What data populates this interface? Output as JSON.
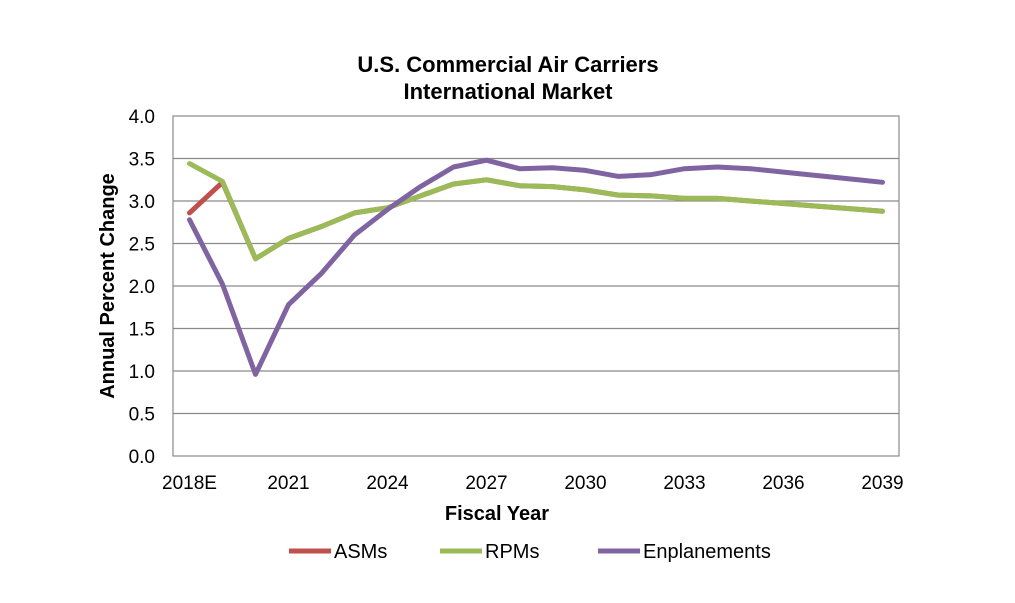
{
  "chart_data": {
    "type": "line",
    "title": [
      "U.S. Commercial Air Carriers",
      "International Market"
    ],
    "xlabel": "Fiscal Year",
    "ylabel": "Annual Percent Change",
    "ylim": [
      0,
      4
    ],
    "yticks": [
      "0.0",
      "0.5",
      "1.0",
      "1.5",
      "2.0",
      "2.5",
      "3.0",
      "3.5",
      "4.0"
    ],
    "ytick_values": [
      0,
      0.5,
      1,
      1.5,
      2,
      2.5,
      3,
      3.5,
      4
    ],
    "x": [
      2018,
      2019,
      2020,
      2021,
      2022,
      2023,
      2024,
      2025,
      2026,
      2027,
      2028,
      2029,
      2030,
      2031,
      2032,
      2033,
      2034,
      2035,
      2036,
      2037,
      2038,
      2039
    ],
    "xticks": [
      "2018E",
      "2021",
      "2024",
      "2027",
      "2030",
      "2033",
      "2036",
      "2039"
    ],
    "xtick_values": [
      2018,
      2021,
      2024,
      2027,
      2030,
      2033,
      2036,
      2039
    ],
    "grid": true,
    "legend_position": "bottom",
    "series": [
      {
        "name": "ASMs",
        "color": "#c0504d",
        "values": [
          2.86,
          3.22,
          2.32,
          2.56,
          2.7,
          2.86,
          2.92,
          3.06,
          3.2,
          3.25,
          3.18,
          3.17,
          3.13,
          3.07,
          3.06,
          3.03,
          3.03,
          3.0,
          2.97,
          2.94,
          2.91,
          2.88
        ]
      },
      {
        "name": "RPMs",
        "color": "#9bbb59",
        "values": [
          3.44,
          3.23,
          2.32,
          2.56,
          2.7,
          2.86,
          2.92,
          3.06,
          3.2,
          3.25,
          3.18,
          3.17,
          3.13,
          3.07,
          3.06,
          3.03,
          3.03,
          3.0,
          2.97,
          2.94,
          2.91,
          2.88
        ]
      },
      {
        "name": "Enplanements",
        "color": "#8064a2",
        "values": [
          2.78,
          2.02,
          0.96,
          1.78,
          2.15,
          2.6,
          2.9,
          3.17,
          3.4,
          3.48,
          3.38,
          3.39,
          3.36,
          3.29,
          3.31,
          3.38,
          3.4,
          3.38,
          3.34,
          3.3,
          3.26,
          3.22
        ]
      }
    ]
  }
}
